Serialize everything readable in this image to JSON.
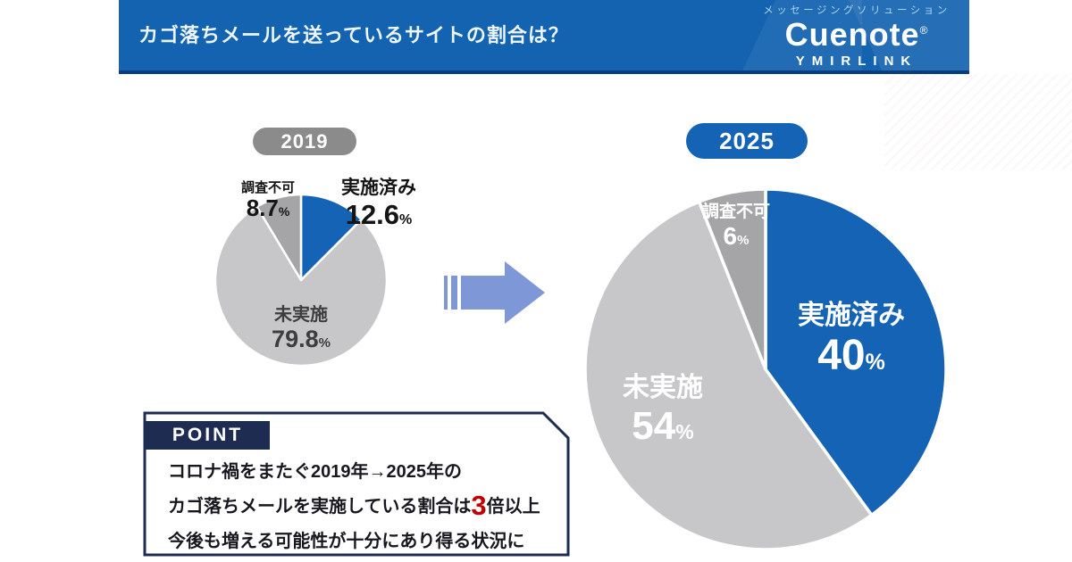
{
  "header": {
    "title": "カゴ落ちメールを送っているサイトの割合は？"
  },
  "logo": {
    "tagline": "メッセージングソリューション",
    "brand": "Cuenote",
    "registered": "®",
    "product": "YMIRLINK"
  },
  "colors": {
    "header_bg": "#1463b0",
    "header_edge": "#0a3d7d",
    "badge_gray": "#8b8b8b",
    "accent_blue": "#1563b4",
    "pie_blue": "#1563b4",
    "pie_light_gray": "#c7c7c9",
    "pie_mid_gray": "#a5a5a7",
    "arrow": "#7e97d7",
    "point_navy": "#1f2c52",
    "highlight_red": "#c00000"
  },
  "chart_data": [
    {
      "type": "pie",
      "badge": "2019",
      "start_angle_deg": -90,
      "direction": "clockwise",
      "legend": "none",
      "slices": [
        {
          "label": "実施済み",
          "value": 12.6,
          "display_value": "12.6",
          "unit": "%",
          "color": "#1563b4"
        },
        {
          "label": "未実施",
          "value": 79.8,
          "display_value": "79.8",
          "unit": "%",
          "color": "#c7c7c9"
        },
        {
          "label": "調査不可",
          "value": 8.7,
          "display_value": "8.7",
          "unit": "%",
          "color": "#a5a5a7"
        }
      ]
    },
    {
      "type": "pie",
      "badge": "2025",
      "start_angle_deg": -90,
      "direction": "clockwise",
      "legend": "none",
      "slices": [
        {
          "label": "実施済み",
          "value": 40,
          "display_value": "40",
          "unit": "%",
          "color": "#1563b4"
        },
        {
          "label": "未実施",
          "value": 54,
          "display_value": "54",
          "unit": "%",
          "color": "#c7c7c9"
        },
        {
          "label": "調査不可",
          "value": 6,
          "display_value": "6",
          "unit": "%",
          "color": "#a5a5a7"
        }
      ]
    }
  ],
  "point": {
    "heading": "POINT",
    "line1": "コロナ禍をまたぐ2019年→2025年の",
    "line2_pre": "カゴ落ちメールを実施している割合は",
    "line2_highlight": "3",
    "line2_post": "倍以上",
    "line3": "今後も増える可能性が十分にあり得る状況に"
  }
}
